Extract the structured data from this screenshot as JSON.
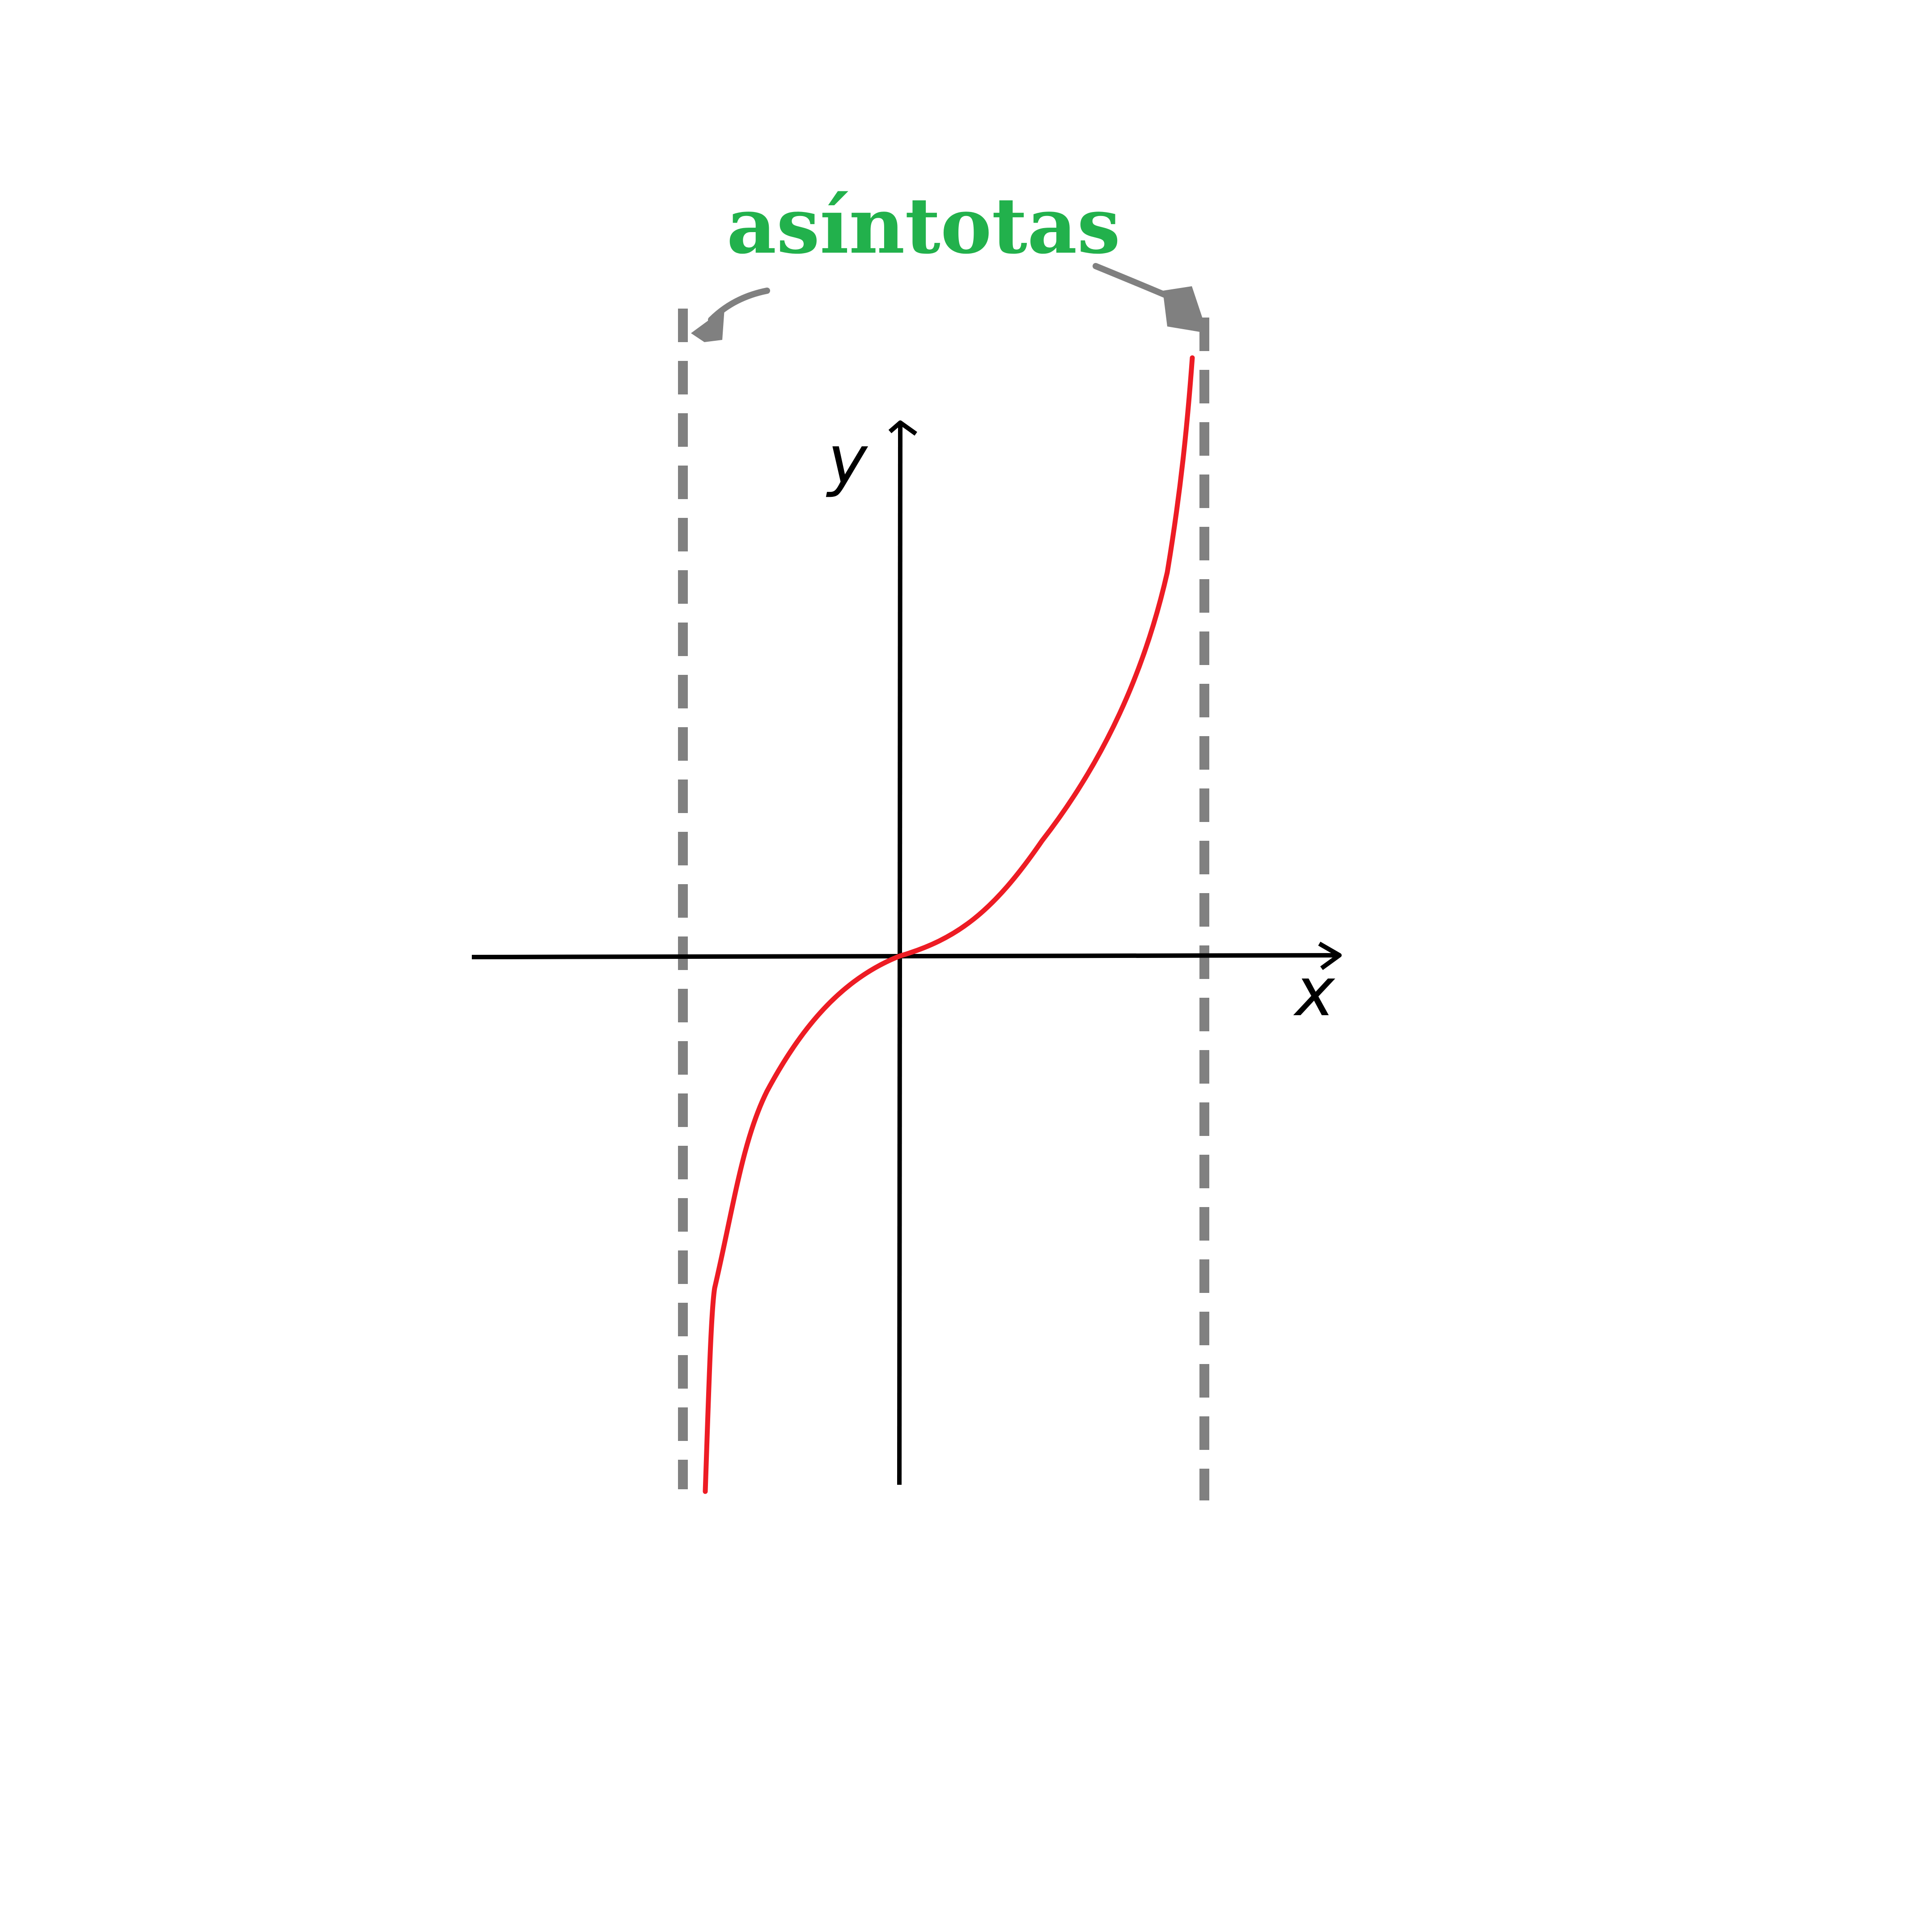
{
  "diagram": {
    "title": "asíntotas",
    "x_axis_label": "x",
    "y_axis_label": "y",
    "curve_shape": "tangent-like curve through origin between two vertical asymptotes",
    "colors": {
      "title": "#22b14c",
      "curve": "#ed1c24",
      "asymptote": "#808080",
      "axes": "#000000",
      "background": "#ffffff"
    }
  }
}
